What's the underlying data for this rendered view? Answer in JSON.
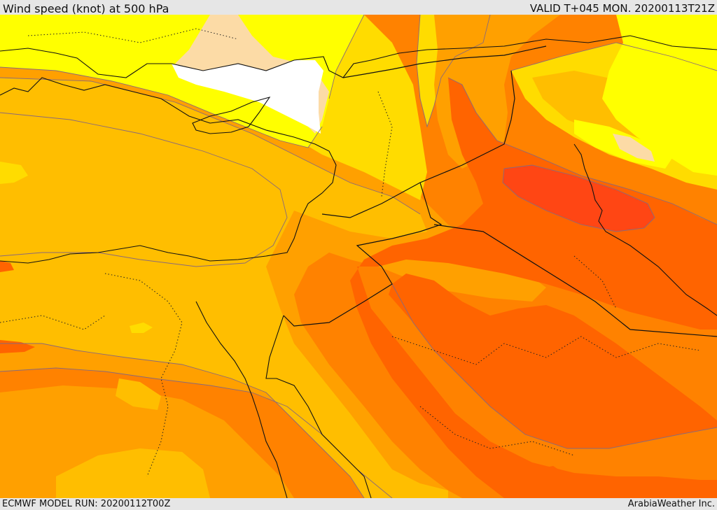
{
  "header": {
    "title": "Wind speed (knot) at 500 hPa",
    "valid": "VALID T+045 MON. 20200113T21Z"
  },
  "footer": {
    "model_run": "ECMWF MODEL RUN: 20200112T00Z",
    "credit": "ArabiaWeather Inc."
  },
  "palette": {
    "white": "#ffffff",
    "light_peach": "#fcdba6",
    "yellow": "#ffff00",
    "gold": "#ffdc00",
    "amber": "#ffbe00",
    "light_orange": "#ffa000",
    "orange": "#ff8200",
    "dark_orange": "#ff6400",
    "red_orange": "#ff4614"
  }
}
